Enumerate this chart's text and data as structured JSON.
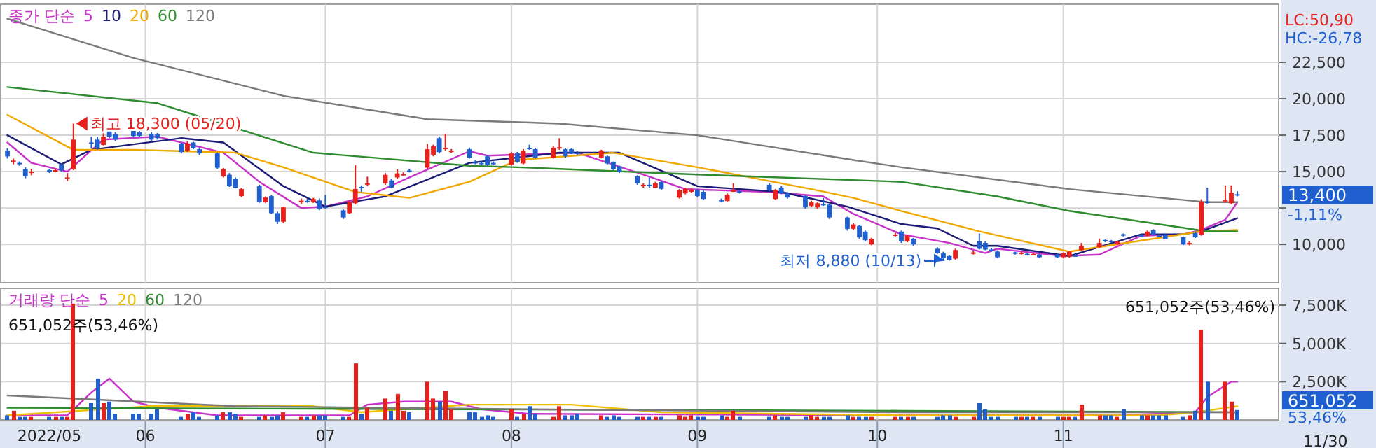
{
  "chart_data": [
    {
      "type": "candlestick",
      "x": [
        "2022-05-09",
        "2022-05-10",
        "2022-05-11",
        "2022-05-12",
        "2022-05-13",
        "2022-05-16",
        "2022-05-17",
        "2022-05-18",
        "2022-05-19",
        "2022-05-20",
        "2022-05-23",
        "2022-05-24",
        "2022-05-25",
        "2022-05-26",
        "2022-05-27",
        "2022-05-30",
        "2022-05-31",
        "2022-06-02",
        "2022-06-03",
        "2022-06-07",
        "2022-06-08",
        "2022-06-09",
        "2022-06-10",
        "2022-06-13",
        "2022-06-14",
        "2022-06-15",
        "2022-06-16",
        "2022-06-17",
        "2022-06-20",
        "2022-06-21",
        "2022-06-22",
        "2022-06-23",
        "2022-06-24",
        "2022-06-27",
        "2022-06-28",
        "2022-06-29",
        "2022-06-30",
        "2022-07-01",
        "2022-07-04",
        "2022-07-05",
        "2022-07-06",
        "2022-07-07",
        "2022-07-08",
        "2022-07-11",
        "2022-07-12",
        "2022-07-13",
        "2022-07-14",
        "2022-07-15",
        "2022-07-18",
        "2022-07-19",
        "2022-07-20",
        "2022-07-21",
        "2022-07-22",
        "2022-07-25",
        "2022-07-26",
        "2022-07-27",
        "2022-07-28",
        "2022-07-29",
        "2022-08-01",
        "2022-08-02",
        "2022-08-03",
        "2022-08-04",
        "2022-08-05",
        "2022-08-08",
        "2022-08-09",
        "2022-08-10",
        "2022-08-11",
        "2022-08-12",
        "2022-08-16",
        "2022-08-17",
        "2022-08-18",
        "2022-08-19",
        "2022-08-22",
        "2022-08-23",
        "2022-08-24",
        "2022-08-25",
        "2022-08-26",
        "2022-08-29",
        "2022-08-30",
        "2022-08-31",
        "2022-09-01",
        "2022-09-02",
        "2022-09-05",
        "2022-09-06",
        "2022-09-07",
        "2022-09-08",
        "2022-09-13",
        "2022-09-14",
        "2022-09-15",
        "2022-09-16",
        "2022-09-19",
        "2022-09-20",
        "2022-09-21",
        "2022-09-22",
        "2022-09-23",
        "2022-09-26",
        "2022-09-27",
        "2022-09-28",
        "2022-09-29",
        "2022-09-30",
        "2022-10-04",
        "2022-10-05",
        "2022-10-06",
        "2022-10-07",
        "2022-10-11",
        "2022-10-12",
        "2022-10-13",
        "2022-10-14",
        "2022-10-17",
        "2022-10-18",
        "2022-10-19",
        "2022-10-20",
        "2022-10-21",
        "2022-10-24",
        "2022-10-25",
        "2022-10-26",
        "2022-10-27",
        "2022-10-28",
        "2022-10-31",
        "2022-11-01",
        "2022-11-02",
        "2022-11-03",
        "2022-11-04",
        "2022-11-07",
        "2022-11-08",
        "2022-11-09",
        "2022-11-10",
        "2022-11-11",
        "2022-11-14",
        "2022-11-15",
        "2022-11-16",
        "2022-11-17",
        "2022-11-18",
        "2022-11-21",
        "2022-11-22",
        "2022-11-23",
        "2022-11-24",
        "2022-11-25",
        "2022-11-28",
        "2022-11-29",
        "2022-11-30"
      ],
      "ohlc": [
        [
          16440,
          16600,
          15900,
          16050
        ],
        [
          15700,
          15900,
          15500,
          15760
        ],
        [
          15600,
          15700,
          15400,
          15560
        ],
        [
          15170,
          15300,
          14550,
          14680
        ],
        [
          14950,
          15200,
          14750,
          15000
        ],
        [
          15100,
          15200,
          14900,
          15080
        ],
        [
          15050,
          15200,
          14950,
          15100
        ],
        [
          15470,
          15550,
          15000,
          15080
        ],
        [
          14550,
          14900,
          14350,
          14600
        ],
        [
          15170,
          18300,
          15100,
          17200
        ],
        [
          17000,
          17400,
          16600,
          16930
        ],
        [
          17200,
          17400,
          16500,
          16640
        ],
        [
          16830,
          17900,
          16800,
          17400
        ],
        [
          17800,
          17950,
          17300,
          17400
        ],
        [
          17600,
          17700,
          17100,
          17200
        ],
        [
          17800,
          17950,
          17350,
          17450
        ],
        [
          17700,
          17800,
          17350,
          17450
        ],
        [
          17600,
          17700,
          17100,
          17200
        ],
        [
          17550,
          17650,
          17200,
          17300
        ],
        [
          16930,
          17000,
          16250,
          16340
        ],
        [
          16440,
          17100,
          16350,
          16930
        ],
        [
          17000,
          17050,
          16550,
          16640
        ],
        [
          16540,
          16650,
          16150,
          16250
        ],
        [
          16250,
          16300,
          15200,
          15270
        ],
        [
          14680,
          15250,
          14600,
          15170
        ],
        [
          14780,
          14900,
          13950,
          14000
        ],
        [
          14490,
          14600,
          13850,
          13900
        ],
        [
          13320,
          13900,
          13250,
          13800
        ],
        [
          14000,
          14100,
          12850,
          12930
        ],
        [
          12930,
          13300,
          12850,
          13220
        ],
        [
          13320,
          13400,
          12100,
          12150
        ],
        [
          12150,
          12250,
          11400,
          11560
        ],
        [
          11560,
          12600,
          11450,
          12540
        ],
        [
          12930,
          13150,
          12800,
          13000
        ],
        [
          13000,
          13150,
          12850,
          12950
        ],
        [
          12930,
          13200,
          12850,
          13120
        ],
        [
          13020,
          13150,
          12350,
          12440
        ],
        [
          12600,
          13400,
          12450,
          12540
        ],
        [
          12340,
          12400,
          11750,
          11850
        ],
        [
          12150,
          13000,
          12100,
          12930
        ],
        [
          12830,
          15440,
          12750,
          13810
        ],
        [
          13950,
          14050,
          13600,
          13900
        ],
        [
          14100,
          14650,
          14000,
          14200
        ],
        [
          14200,
          14900,
          14100,
          14780
        ],
        [
          14390,
          14500,
          13850,
          13900
        ],
        [
          14600,
          15150,
          14500,
          14880
        ],
        [
          14780,
          14950,
          14700,
          14830
        ],
        [
          15080,
          15200,
          14950,
          15000
        ],
        [
          15270,
          16900,
          15200,
          16540
        ],
        [
          16150,
          16850,
          16050,
          16740
        ],
        [
          17300,
          17400,
          16250,
          16340
        ],
        [
          16540,
          17600,
          16450,
          16640
        ],
        [
          16400,
          16550,
          16300,
          16440
        ],
        [
          16540,
          16650,
          15900,
          15960
        ],
        [
          15660,
          15800,
          15500,
          15600
        ],
        [
          15600,
          15700,
          15450,
          15560
        ],
        [
          16050,
          16150,
          15400,
          15470
        ],
        [
          15600,
          15700,
          15450,
          15560
        ],
        [
          15470,
          16350,
          15400,
          16250
        ],
        [
          16250,
          16350,
          15600,
          15660
        ],
        [
          15560,
          16550,
          15500,
          16440
        ],
        [
          16640,
          16850,
          16500,
          16600
        ],
        [
          16540,
          16600,
          15900,
          15960
        ],
        [
          15960,
          16750,
          15900,
          16640
        ],
        [
          16600,
          17300,
          16500,
          16680
        ],
        [
          16540,
          16600,
          15950,
          16050
        ],
        [
          16540,
          16600,
          16200,
          16250
        ],
        [
          16300,
          16400,
          16150,
          16250
        ],
        [
          15960,
          16500,
          15900,
          16440
        ],
        [
          16050,
          16100,
          15500,
          15560
        ],
        [
          15660,
          15700,
          15100,
          15170
        ],
        [
          15370,
          15400,
          14900,
          14980
        ],
        [
          14680,
          14750,
          14100,
          14200
        ],
        [
          14000,
          14200,
          13900,
          14100
        ],
        [
          14100,
          14600,
          13900,
          14050
        ],
        [
          13900,
          14300,
          13850,
          14200
        ],
        [
          14290,
          14350,
          13750,
          13810
        ],
        [
          13220,
          13800,
          13150,
          13710
        ],
        [
          13510,
          13900,
          13450,
          13810
        ],
        [
          13660,
          13850,
          13550,
          13710
        ],
        [
          13710,
          13800,
          13250,
          13320
        ],
        [
          13610,
          13700,
          13050,
          13120
        ],
        [
          13050,
          13150,
          12900,
          13000
        ],
        [
          12980,
          13500,
          12950,
          13420
        ],
        [
          13660,
          14200,
          13600,
          13710
        ],
        [
          13650,
          13750,
          13500,
          13610
        ],
        [
          14100,
          14200,
          13650,
          13710
        ],
        [
          13120,
          13800,
          13050,
          13710
        ],
        [
          13900,
          14000,
          13450,
          13510
        ],
        [
          13510,
          13600,
          13150,
          13220
        ],
        [
          13320,
          13400,
          12450,
          12540
        ],
        [
          12640,
          13000,
          12550,
          12930
        ],
        [
          12540,
          12900,
          12450,
          12830
        ],
        [
          12780,
          13200,
          12650,
          12730
        ],
        [
          12730,
          12800,
          11750,
          11850
        ],
        [
          11850,
          11900,
          10950,
          11070
        ],
        [
          11070,
          11450,
          11000,
          11370
        ],
        [
          11270,
          11350,
          10400,
          10490
        ],
        [
          10880,
          10950,
          10200,
          10290
        ],
        [
          10000,
          10450,
          9950,
          10390
        ],
        [
          10640,
          10800,
          10550,
          10680
        ],
        [
          10880,
          10950,
          10100,
          10200
        ],
        [
          10200,
          10650,
          10150,
          10590
        ],
        [
          10390,
          10450,
          9900,
          10000
        ],
        [
          9700,
          9800,
          9350,
          9410
        ],
        [
          9400,
          9500,
          8950,
          9050
        ],
        [
          9200,
          9250,
          8880,
          8950
        ],
        [
          9020,
          9700,
          8950,
          9610
        ],
        [
          9400,
          9550,
          9300,
          9450
        ],
        [
          10200,
          10750,
          9650,
          9700
        ],
        [
          10100,
          10200,
          9600,
          9650
        ],
        [
          9650,
          9750,
          9500,
          9610
        ],
        [
          9510,
          9600,
          9050,
          9120
        ],
        [
          9450,
          9500,
          9300,
          9410
        ],
        [
          9380,
          9500,
          9300,
          9430
        ],
        [
          9350,
          9400,
          9250,
          9310
        ],
        [
          9300,
          9400,
          9250,
          9350
        ],
        [
          9310,
          9350,
          9050,
          9120
        ],
        [
          9310,
          9350,
          9050,
          9120
        ],
        [
          9120,
          9450,
          9050,
          9410
        ],
        [
          9150,
          9550,
          9100,
          9500
        ],
        [
          9250,
          9350,
          9150,
          9220
        ],
        [
          9610,
          10100,
          9550,
          9900
        ],
        [
          9800,
          10400,
          9750,
          10100
        ],
        [
          10300,
          10350,
          10150,
          10250
        ],
        [
          10250,
          10300,
          10100,
          10200
        ],
        [
          10000,
          10250,
          9950,
          10200
        ],
        [
          10700,
          10750,
          10550,
          10680
        ],
        [
          10640,
          10700,
          10500,
          10600
        ],
        [
          10590,
          10950,
          10550,
          10880
        ],
        [
          10980,
          11050,
          10600,
          10680
        ],
        [
          10620,
          10700,
          10500,
          10580
        ],
        [
          10680,
          10750,
          10350,
          10390
        ],
        [
          10490,
          10550,
          9950,
          10000
        ],
        [
          10050,
          10200,
          9950,
          10100
        ],
        [
          10780,
          10850,
          10450,
          10490
        ],
        [
          10680,
          13100,
          10600,
          12930
        ],
        [
          12950,
          13900,
          12800,
          12900
        ],
        [
          13000,
          14050,
          12900,
          13050
        ],
        [
          12830,
          14050,
          12750,
          13550
        ],
        [
          13450,
          13650,
          13300,
          13400
        ]
      ],
      "series": [
        {
          "name": "5",
          "type": "line",
          "color": "#c832c8",
          "x": [
            "2022-05-09",
            "2022-05-13",
            "2022-05-19",
            "2022-05-25",
            "2022-06-03",
            "2022-06-14",
            "2022-06-20",
            "2022-06-27",
            "2022-07-01",
            "2022-07-08",
            "2022-07-15",
            "2022-07-25",
            "2022-07-28",
            "2022-08-12",
            "2022-08-23",
            "2022-08-30",
            "2022-09-13",
            "2022-09-22",
            "2022-09-27",
            "2022-10-05",
            "2022-10-13",
            "2022-10-19",
            "2022-10-21",
            "2022-11-01",
            "2022-11-07",
            "2022-11-14",
            "2022-11-21",
            "2022-11-24",
            "2022-11-28",
            "2022-11-30"
          ],
          "values": [
            17000,
            15600,
            15000,
            17200,
            17400,
            16300,
            14300,
            12500,
            12600,
            13300,
            14600,
            16400,
            16100,
            16300,
            14800,
            13800,
            13600,
            13300,
            12100,
            10700,
            10100,
            9400,
            9700,
            9200,
            9300,
            10600,
            10700,
            11000,
            11700,
            12900
          ]
        },
        {
          "name": "10",
          "type": "line",
          "color": "#1c1c78",
          "x": [
            "2022-05-09",
            "2022-05-18",
            "2022-05-23",
            "2022-06-07",
            "2022-06-14",
            "2022-06-24",
            "2022-07-01",
            "2022-07-11",
            "2022-07-25",
            "2022-08-09",
            "2022-08-19",
            "2022-09-01",
            "2022-09-15",
            "2022-09-26",
            "2022-10-05",
            "2022-10-11",
            "2022-10-17",
            "2022-10-21",
            "2022-11-02",
            "2022-11-14",
            "2022-11-21",
            "2022-11-24",
            "2022-11-30"
          ],
          "values": [
            17500,
            15500,
            16500,
            17300,
            17000,
            14000,
            12600,
            13300,
            15600,
            16300,
            16300,
            14000,
            13600,
            12600,
            11400,
            11100,
            9900,
            9900,
            9200,
            10700,
            10700,
            10900,
            11800
          ]
        },
        {
          "name": "20",
          "type": "line",
          "color": "#f0a800",
          "x": [
            "2022-05-09",
            "2022-05-20",
            "2022-05-30",
            "2022-06-16",
            "2022-06-24",
            "2022-07-06",
            "2022-07-15",
            "2022-07-25",
            "2022-08-02",
            "2022-08-18",
            "2022-09-01",
            "2022-09-20",
            "2022-09-27",
            "2022-10-05",
            "2022-10-18",
            "2022-11-02",
            "2022-11-24",
            "2022-11-30"
          ],
          "values": [
            18900,
            16500,
            16500,
            16300,
            15300,
            13600,
            13200,
            14300,
            15800,
            16300,
            15300,
            13800,
            13200,
            12300,
            10900,
            9500,
            10900,
            11000
          ]
        },
        {
          "name": "60",
          "type": "line",
          "color": "#2e8b2e",
          "x": [
            "2022-05-09",
            "2022-06-03",
            "2022-06-29",
            "2022-07-25",
            "2022-08-02",
            "2022-09-01",
            "2022-10-05",
            "2022-10-21",
            "2022-11-02",
            "2022-11-25",
            "2022-11-30"
          ],
          "values": [
            20800,
            19700,
            16300,
            15400,
            15300,
            14800,
            14300,
            13300,
            12300,
            10900,
            10900
          ]
        },
        {
          "name": "120",
          "type": "line",
          "color": "#7a7a7a",
          "x": [
            "2022-05-09",
            "2022-05-30",
            "2022-06-24",
            "2022-07-18",
            "2022-08-09",
            "2022-09-01",
            "2022-09-27",
            "2022-10-05",
            "2022-11-02",
            "2022-11-25",
            "2022-11-30"
          ],
          "values": [
            25500,
            22800,
            20200,
            18600,
            18300,
            17500,
            15800,
            15300,
            13800,
            12900,
            12900
          ]
        }
      ],
      "legend_title": "종가 단순",
      "legend": "top left",
      "grid": true,
      "tick_labels": "y",
      "xlim": [
        "2022-05-08",
        "2022-12-07"
      ],
      "xticks": [
        {
          "value": "2022-06-01",
          "label": null
        },
        {
          "value": "2022-07-01",
          "label": null
        },
        {
          "value": "2022-08-01",
          "label": null
        },
        {
          "value": "2022-09-01",
          "label": null
        },
        {
          "value": "2022-10-01",
          "label": null
        },
        {
          "value": "2022-11-01",
          "label": null
        }
      ],
      "ylim": [
        7365,
        26490
      ],
      "yticks": [
        {
          "value": 10000,
          "label": "10,000"
        },
        {
          "value": 12500,
          "label": null
        },
        {
          "value": 15000,
          "label": "15,000"
        },
        {
          "value": 17500,
          "label": "17,500"
        },
        {
          "value": 20000,
          "label": "20,000"
        },
        {
          "value": 22500,
          "label": "22,500"
        }
      ],
      "annotations": [
        {
          "text": "최고 18,300 (05/20)",
          "x": "2022-05-20",
          "y": 18300
        },
        {
          "text": "최저 8,880 (10/13)",
          "x": "2022-10-13",
          "y": 8880
        },
        "LC:50,90",
        "HC:-26,78",
        "13,400",
        "-1,11%"
      ]
    },
    {
      "type": "bar",
      "x": [
        "2022-05-09",
        "2022-05-10",
        "2022-05-11",
        "2022-05-12",
        "2022-05-13",
        "2022-05-16",
        "2022-05-17",
        "2022-05-18",
        "2022-05-19",
        "2022-05-20",
        "2022-05-23",
        "2022-05-24",
        "2022-05-25",
        "2022-05-26",
        "2022-05-27",
        "2022-05-30",
        "2022-05-31",
        "2022-06-02",
        "2022-06-03",
        "2022-06-07",
        "2022-06-08",
        "2022-06-09",
        "2022-06-10",
        "2022-06-13",
        "2022-06-14",
        "2022-06-15",
        "2022-06-16",
        "2022-06-17",
        "2022-06-20",
        "2022-06-21",
        "2022-06-22",
        "2022-06-23",
        "2022-06-24",
        "2022-06-27",
        "2022-06-28",
        "2022-06-29",
        "2022-06-30",
        "2022-07-01",
        "2022-07-04",
        "2022-07-05",
        "2022-07-06",
        "2022-07-07",
        "2022-07-08",
        "2022-07-11",
        "2022-07-12",
        "2022-07-13",
        "2022-07-14",
        "2022-07-15",
        "2022-07-18",
        "2022-07-19",
        "2022-07-20",
        "2022-07-21",
        "2022-07-22",
        "2022-07-25",
        "2022-07-26",
        "2022-07-27",
        "2022-07-28",
        "2022-07-29",
        "2022-08-01",
        "2022-08-02",
        "2022-08-03",
        "2022-08-04",
        "2022-08-05",
        "2022-08-08",
        "2022-08-09",
        "2022-08-10",
        "2022-08-11",
        "2022-08-12",
        "2022-08-16",
        "2022-08-17",
        "2022-08-18",
        "2022-08-19",
        "2022-08-22",
        "2022-08-23",
        "2022-08-24",
        "2022-08-25",
        "2022-08-26",
        "2022-08-29",
        "2022-08-30",
        "2022-08-31",
        "2022-09-01",
        "2022-09-02",
        "2022-09-05",
        "2022-09-06",
        "2022-09-07",
        "2022-09-08",
        "2022-09-13",
        "2022-09-14",
        "2022-09-15",
        "2022-09-16",
        "2022-09-19",
        "2022-09-20",
        "2022-09-21",
        "2022-09-22",
        "2022-09-23",
        "2022-09-26",
        "2022-09-27",
        "2022-09-28",
        "2022-09-29",
        "2022-09-30",
        "2022-10-04",
        "2022-10-05",
        "2022-10-06",
        "2022-10-07",
        "2022-10-11",
        "2022-10-12",
        "2022-10-13",
        "2022-10-14",
        "2022-10-17",
        "2022-10-18",
        "2022-10-19",
        "2022-10-20",
        "2022-10-21",
        "2022-10-24",
        "2022-10-25",
        "2022-10-26",
        "2022-10-27",
        "2022-10-28",
        "2022-10-31",
        "2022-11-01",
        "2022-11-02",
        "2022-11-03",
        "2022-11-04",
        "2022-11-07",
        "2022-11-08",
        "2022-11-09",
        "2022-11-10",
        "2022-11-11",
        "2022-11-14",
        "2022-11-15",
        "2022-11-16",
        "2022-11-17",
        "2022-11-18",
        "2022-11-21",
        "2022-11-22",
        "2022-11-23",
        "2022-11-24",
        "2022-11-25",
        "2022-11-28",
        "2022-11-29",
        "2022-11-30"
      ],
      "series": [
        {
          "type": "bar",
          "values": [
            300,
            600,
            200,
            200,
            200,
            200,
            200,
            200,
            200,
            7600,
            1100,
            2700,
            1100,
            1200,
            400,
            400,
            400,
            400,
            700,
            200,
            400,
            500,
            200,
            300,
            500,
            500,
            400,
            200,
            200,
            300,
            200,
            300,
            500,
            200,
            200,
            300,
            300,
            300,
            200,
            200,
            3700,
            400,
            800,
            1400,
            600,
            1700,
            600,
            500,
            2500,
            1400,
            1200,
            1900,
            700,
            500,
            500,
            200,
            300,
            200,
            700,
            200,
            400,
            900,
            400,
            200,
            900,
            300,
            300,
            400,
            300,
            200,
            300,
            200,
            200,
            200,
            200,
            200,
            200,
            300,
            200,
            300,
            200,
            200,
            300,
            200,
            600,
            200,
            200,
            300,
            200,
            200,
            200,
            300,
            200,
            200,
            200,
            300,
            200,
            200,
            200,
            200,
            200,
            200,
            200,
            200,
            200,
            300,
            300,
            200,
            200,
            1100,
            700,
            200,
            200,
            200,
            200,
            200,
            200,
            200,
            200,
            200,
            200,
            200,
            1000,
            300,
            300,
            300,
            200,
            700,
            300,
            300,
            300,
            300,
            300,
            200,
            300,
            600,
            5900,
            2500,
            2500,
            1200,
            651
          ],
          "colors": [
            "#1f5fd0",
            "#e8201c",
            "#1f5fd0",
            "#1f5fd0",
            "#e8201c",
            "#1f5fd0",
            "#e8201c",
            "#1f5fd0",
            "#e8201c",
            "#e8201c",
            "#1f5fd0",
            "#1f5fd0",
            "#e8201c",
            "#1f5fd0",
            "#1f5fd0",
            "#1f5fd0",
            "#1f5fd0",
            "#1f5fd0",
            "#1f5fd0",
            "#1f5fd0",
            "#e8201c",
            "#1f5fd0",
            "#1f5fd0",
            "#1f5fd0",
            "#e8201c",
            "#1f5fd0",
            "#1f5fd0",
            "#e8201c",
            "#1f5fd0",
            "#e8201c",
            "#1f5fd0",
            "#1f5fd0",
            "#e8201c",
            "#e8201c",
            "#1f5fd0",
            "#e8201c",
            "#1f5fd0",
            "#1f5fd0",
            "#1f5fd0",
            "#e8201c",
            "#e8201c",
            "#1f5fd0",
            "#e8201c",
            "#e8201c",
            "#1f5fd0",
            "#e8201c",
            "#e8201c",
            "#1f5fd0",
            "#e8201c",
            "#e8201c",
            "#1f5fd0",
            "#e8201c",
            "#e8201c",
            "#1f5fd0",
            "#1f5fd0",
            "#1f5fd0",
            "#1f5fd0",
            "#1f5fd0",
            "#e8201c",
            "#1f5fd0",
            "#e8201c",
            "#1f5fd0",
            "#1f5fd0",
            "#e8201c",
            "#e8201c",
            "#1f5fd0",
            "#1f5fd0",
            "#1f5fd0",
            "#e8201c",
            "#1f5fd0",
            "#1f5fd0",
            "#1f5fd0",
            "#1f5fd0",
            "#e8201c",
            "#1f5fd0",
            "#e8201c",
            "#1f5fd0",
            "#e8201c",
            "#e8201c",
            "#e8201c",
            "#1f5fd0",
            "#1f5fd0",
            "#1f5fd0",
            "#e8201c",
            "#e8201c",
            "#1f5fd0",
            "#1f5fd0",
            "#e8201c",
            "#1f5fd0",
            "#1f5fd0",
            "#1f5fd0",
            "#e8201c",
            "#e8201c",
            "#1f5fd0",
            "#1f5fd0",
            "#1f5fd0",
            "#e8201c",
            "#1f5fd0",
            "#1f5fd0",
            "#e8201c",
            "#e8201c",
            "#1f5fd0",
            "#e8201c",
            "#1f5fd0",
            "#1f5fd0",
            "#1f5fd0",
            "#1f5fd0",
            "#e8201c",
            "#e8201c",
            "#1f5fd0",
            "#1f5fd0",
            "#1f5fd0",
            "#1f5fd0",
            "#1f5fd0",
            "#e8201c",
            "#1f5fd0",
            "#e8201c",
            "#1f5fd0",
            "#1f5fd0",
            "#e8201c",
            "#e8201c",
            "#1f5fd0",
            "#e8201c",
            "#e8201c",
            "#1f5fd0",
            "#1f5fd0",
            "#e8201c",
            "#1f5fd0",
            "#1f5fd0",
            "#e8201c",
            "#1f5fd0",
            "#1f5fd0",
            "#1f5fd0",
            "#1f5fd0",
            "#e8201c",
            "#1f5fd0",
            "#e8201c",
            "#1f5fd0",
            "#e8201c",
            "#e8201c",
            "#1f5fd0"
          ]
        },
        {
          "name": "5",
          "type": "line",
          "color": "#c832c8",
          "x": [
            "2022-05-09",
            "2022-05-19",
            "2022-05-23",
            "2022-05-26",
            "2022-05-30",
            "2022-06-03",
            "2022-06-13",
            "2022-07-05",
            "2022-07-08",
            "2022-07-14",
            "2022-07-22",
            "2022-07-27",
            "2022-08-04",
            "2022-10-05",
            "2022-11-10",
            "2022-11-23",
            "2022-11-25",
            "2022-11-29",
            "2022-11-30"
          ],
          "values": [
            300,
            300,
            1800,
            2700,
            1200,
            800,
            300,
            300,
            1000,
            1200,
            1200,
            700,
            400,
            300,
            300,
            500,
            1500,
            2500,
            2500
          ]
        },
        {
          "name": "20",
          "type": "line",
          "color": "#f0c000",
          "x": [
            "2022-05-09",
            "2022-06-02",
            "2022-06-29",
            "2022-07-07",
            "2022-07-25",
            "2022-08-11",
            "2022-08-26",
            "2022-10-05",
            "2022-11-17",
            "2022-11-23",
            "2022-11-30"
          ],
          "values": [
            300,
            900,
            900,
            500,
            1000,
            1000,
            500,
            300,
            300,
            500,
            900
          ]
        },
        {
          "name": "60",
          "type": "line",
          "color": "#2e8b2e",
          "x": [
            "2022-05-09",
            "2022-07-21",
            "2022-10-05",
            "2022-11-30"
          ],
          "values": [
            800,
            700,
            600,
            500
          ]
        },
        {
          "name": "120",
          "type": "line",
          "color": "#7a7a7a",
          "x": [
            "2022-05-09",
            "2022-06-16",
            "2022-08-04",
            "2022-10-05",
            "2022-11-30"
          ],
          "values": [
            1600,
            900,
            700,
            500,
            500
          ]
        }
      ],
      "legend_title": "거래량 단순",
      "legend": "top left",
      "grid": true,
      "xlim": [
        "2022-05-08",
        "2022-12-07"
      ],
      "xticks": [
        {
          "value": "2022-05-16",
          "label": "2022/05"
        },
        {
          "value": "2022-06-01",
          "label": "06"
        },
        {
          "value": "2022-07-01",
          "label": "07"
        },
        {
          "value": "2022-08-01",
          "label": "08"
        },
        {
          "value": "2022-09-01",
          "label": "09"
        },
        {
          "value": "2022-10-01",
          "label": "10"
        },
        {
          "value": "2022-11-01",
          "label": "11"
        }
      ],
      "ylim": [
        0,
        8600
      ],
      "yticks": [
        {
          "value": 2500,
          "label": "2,500K"
        },
        {
          "value": 5000,
          "label": "5,000K"
        },
        {
          "value": 7500,
          "label": "7,500K"
        }
      ],
      "annotations": [
        "651,052주(53,46%)",
        "651,052주(53,46%)",
        "651,052",
        "53,46%",
        "11/30"
      ]
    }
  ]
}
